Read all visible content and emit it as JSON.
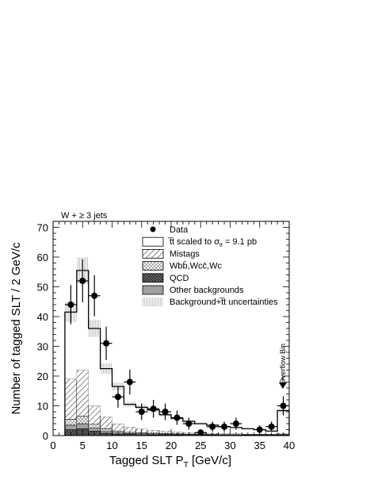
{
  "chart_data": {
    "type": "bar",
    "title": "W + ≥ 3 jets",
    "xlabel": "Tagged SLT P",
    "xlabel_sub": "T",
    "xlabel_unit": " [GeV/c]",
    "ylabel": "Number of tagged SLT / 2 GeV/c",
    "xlim": [
      0,
      40
    ],
    "ylim": [
      0,
      72
    ],
    "x_ticks": [
      0,
      5,
      10,
      15,
      20,
      25,
      30,
      35,
      40
    ],
    "y_ticks": [
      0,
      10,
      20,
      30,
      40,
      50,
      60,
      70
    ],
    "bin_width": 2,
    "bin_edges": [
      2,
      4,
      6,
      8,
      10,
      12,
      14,
      16,
      18,
      20,
      22,
      24,
      26,
      28,
      30,
      32,
      34,
      36,
      38,
      40
    ],
    "series": [
      {
        "name": "QCD",
        "values": [
          2.0,
          2.3,
          1.5,
          0.8,
          0.5,
          0.4,
          0.3,
          0.2,
          0.2,
          0.2,
          0.1,
          0.1,
          0.1,
          0.1,
          0.1,
          0.1,
          0.1,
          0.1,
          0.1
        ]
      },
      {
        "name": "Other backgrounds",
        "values": [
          1.5,
          1.7,
          1.0,
          0.6,
          0.4,
          0.3,
          0.3,
          0.3,
          0.2,
          0.2,
          0.2,
          0.2,
          0.1,
          0.1,
          0.1,
          0.1,
          0.1,
          0.1,
          0.1
        ]
      },
      {
        "name": "Wbb̄,Wcc̄,Wc",
        "values": [
          2.0,
          2.5,
          1.3,
          0.9,
          0.6,
          0.4,
          0.3,
          0.3,
          0.3,
          0.2,
          0.2,
          0.2,
          0.2,
          0.1,
          0.1,
          0.1,
          0.1,
          0.1,
          0.2
        ]
      },
      {
        "name": "Mistags",
        "values": [
          13.5,
          15.5,
          6.2,
          4.0,
          2.5,
          1.7,
          1.3,
          1.0,
          0.8,
          0.6,
          0.5,
          0.4,
          0.4,
          0.3,
          0.3,
          0.2,
          0.2,
          0.2,
          0.4
        ]
      },
      {
        "name": "t̅t scaled to σtt = 9.1 pb",
        "values": [
          22.5,
          33.5,
          26.0,
          16.2,
          12.5,
          7.7,
          7.3,
          6.8,
          5.5,
          4.6,
          3.8,
          3.1,
          2.7,
          2.4,
          2.1,
          1.8,
          1.5,
          1.0,
          7.6
        ]
      }
    ],
    "stack_totals": [
      41.5,
      55.5,
      36.0,
      22.5,
      16.5,
      10.5,
      9.5,
      8.6,
      7.0,
      5.8,
      4.8,
      4.0,
      3.5,
      3.0,
      2.7,
      2.3,
      2.0,
      1.5,
      8.4
    ],
    "uncertainty_band": {
      "name": "Background+t̅t uncertainties",
      "relative": 0.08
    },
    "data_points": {
      "name": "Data",
      "x": [
        3,
        5,
        7,
        9,
        11,
        13,
        15,
        17,
        19,
        21,
        23,
        25,
        27,
        29,
        31,
        35,
        37,
        39
      ],
      "y": [
        44,
        52,
        47,
        31,
        13,
        18,
        8,
        9,
        8,
        6,
        4,
        1,
        3,
        3,
        4,
        2,
        3,
        10
      ],
      "yerr": [
        6.6,
        7.2,
        6.9,
        5.6,
        3.6,
        4.2,
        2.8,
        3.0,
        2.8,
        2.4,
        2.0,
        1.0,
        1.7,
        1.7,
        2.0,
        1.4,
        1.7,
        3.2
      ]
    },
    "legend": {
      "position": "top-right",
      "entries": [
        {
          "kind": "marker",
          "label": "Data"
        },
        {
          "kind": "ttbar",
          "label": "t̅t scaled to σ",
          "sub": "tt",
          "suffix": " = 9.1 pb"
        },
        {
          "kind": "mistag",
          "label": "Mistags"
        },
        {
          "kind": "wbb",
          "label": "Wbb̄,Wcc̄,Wc"
        },
        {
          "kind": "qcd",
          "label": "QCD"
        },
        {
          "kind": "other",
          "label": "Other backgrounds"
        },
        {
          "kind": "unc",
          "label": "Background+t̅t uncertainties"
        }
      ]
    },
    "annotation": "Overflow Bin",
    "colors": {
      "other": "#a0a0a0",
      "axes": "#000000",
      "background": "#ffffff"
    }
  }
}
